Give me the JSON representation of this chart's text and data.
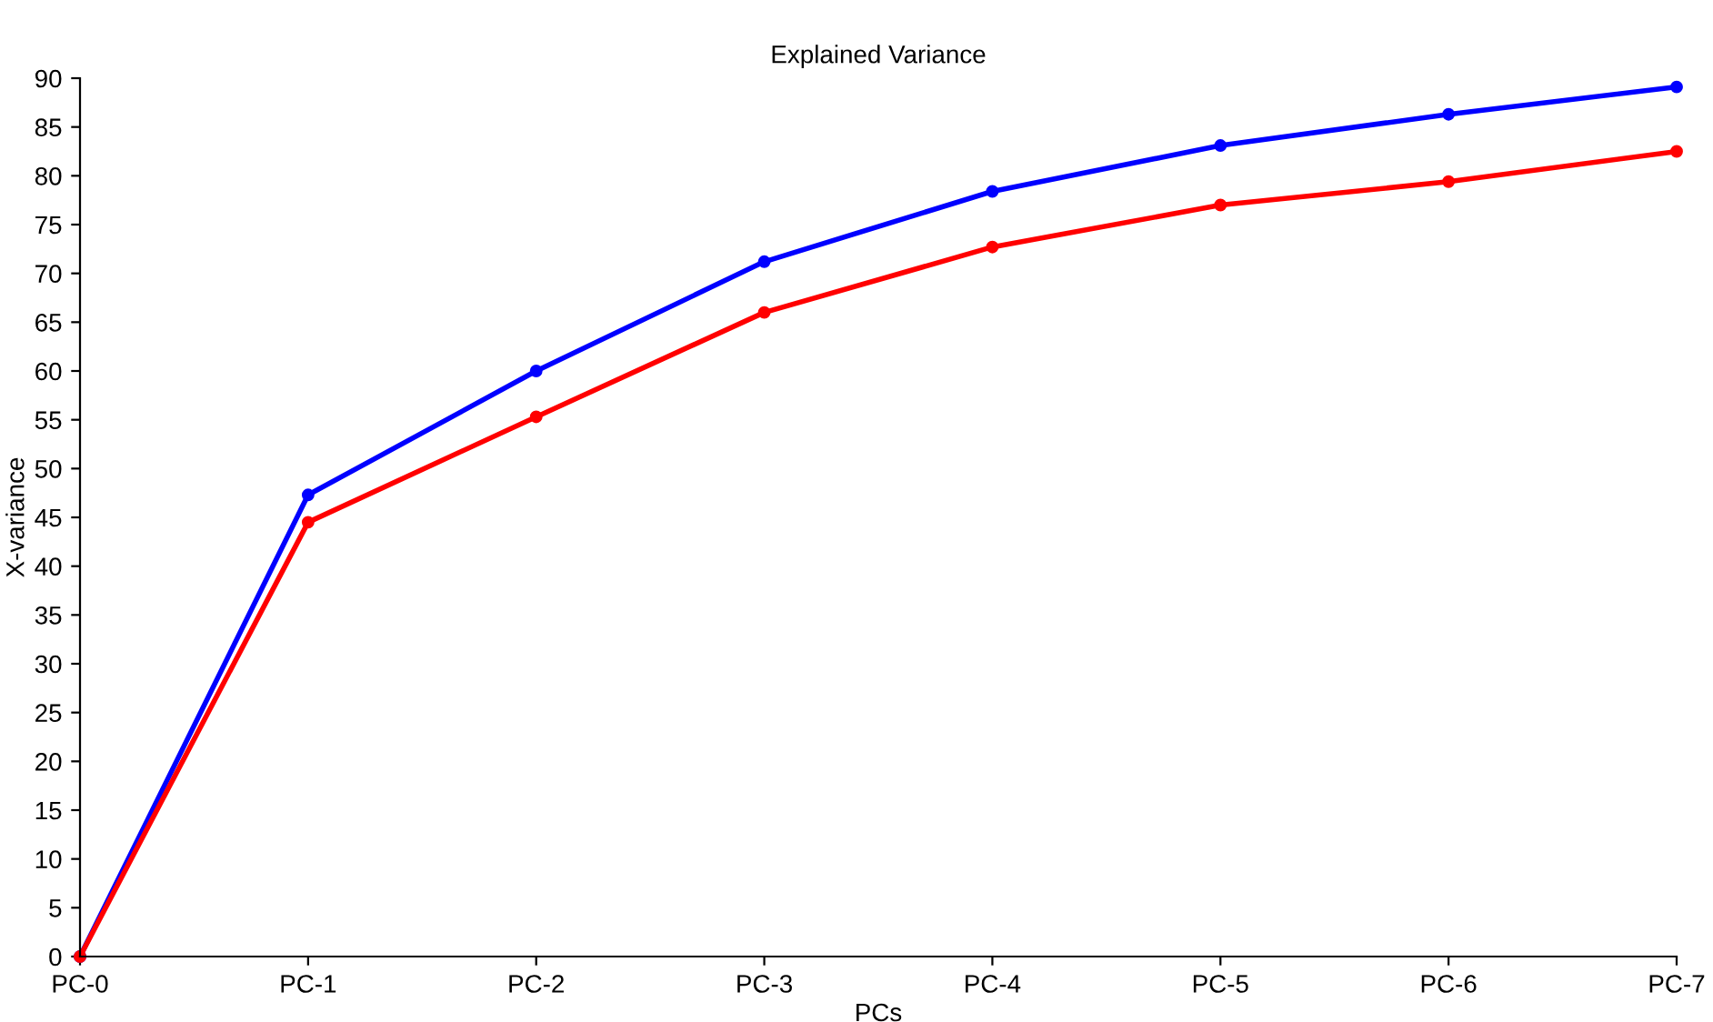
{
  "chart_data": {
    "type": "line",
    "title": "Explained Variance",
    "xlabel": "PCs",
    "ylabel": "X-variance",
    "categories": [
      "PC-0",
      "PC-1",
      "PC-2",
      "PC-3",
      "PC-4",
      "PC-5",
      "PC-6",
      "PC-7"
    ],
    "series": [
      {
        "color": "#0000ff",
        "values": [
          0,
          47.3,
          60.0,
          71.2,
          78.4,
          83.1,
          86.3,
          89.1
        ]
      },
      {
        "color": "#ff0000",
        "values": [
          0,
          44.5,
          55.3,
          66.0,
          72.7,
          77.0,
          79.4,
          82.5
        ]
      }
    ],
    "ylim": [
      0,
      90
    ],
    "yticks": [
      0,
      5,
      10,
      15,
      20,
      25,
      30,
      35,
      40,
      45,
      50,
      55,
      60,
      65,
      70,
      75,
      80,
      85,
      90
    ],
    "grid": false,
    "marker": "circle",
    "line_style": "solid"
  }
}
